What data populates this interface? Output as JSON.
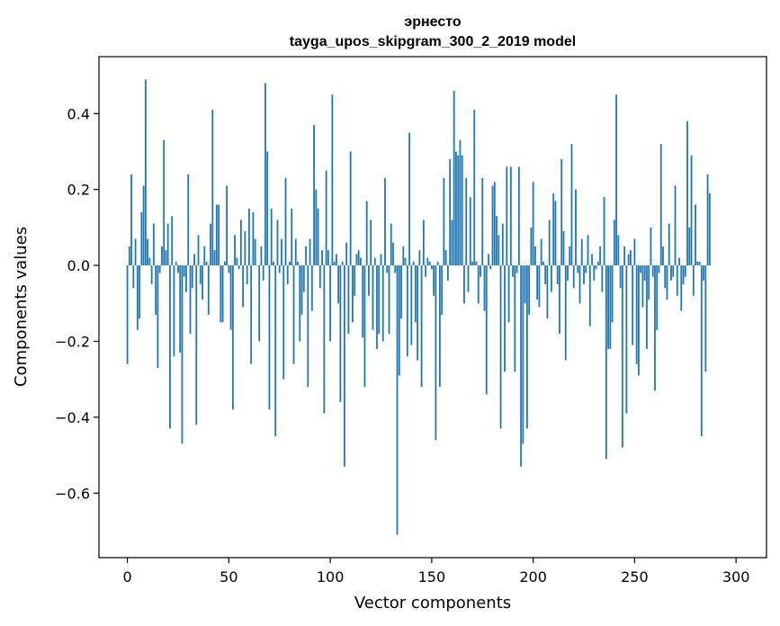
{
  "chart_data": {
    "type": "bar",
    "title_line1": "эрнесто",
    "title_line2": "tayga_upos_skipgram_300_2_2019 model",
    "xlabel": "Vector components",
    "ylabel": "Components values",
    "xlim": [
      -14,
      315
    ],
    "ylim": [
      -0.77,
      0.55
    ],
    "xticks": [
      0,
      50,
      100,
      150,
      200,
      250,
      300
    ],
    "yticks": [
      -0.6,
      -0.4,
      -0.2,
      0.0,
      0.2,
      0.4
    ],
    "ytick_labels": [
      "−0.6",
      "−0.4",
      "−0.2",
      "0.0",
      "0.2",
      "0.4"
    ],
    "grid": false,
    "bar_color": "#1f77b4",
    "values": [
      -0.26,
      0.05,
      0.24,
      -0.06,
      0.07,
      -0.17,
      -0.14,
      0.14,
      0.21,
      0.49,
      0.07,
      0.02,
      -0.05,
      0.11,
      -0.13,
      -0.27,
      -0.02,
      0.05,
      0.33,
      0.04,
      0.11,
      -0.43,
      0.13,
      -0.24,
      0.01,
      -0.02,
      -0.23,
      -0.47,
      -0.03,
      -0.07,
      0.24,
      -0.18,
      -0.06,
      0.03,
      -0.42,
      0.08,
      -0.05,
      -0.09,
      0.05,
      0.01,
      -0.13,
      0.11,
      0.41,
      0.04,
      0.16,
      0.16,
      -0.15,
      -0.15,
      0.01,
      0.21,
      -0.02,
      -0.17,
      -0.38,
      0.08,
      0.02,
      -0.01,
      0.12,
      -0.11,
      0.09,
      -0.05,
      0.15,
      -0.26,
      0.14,
      0.07,
      0.0,
      -0.2,
      0.05,
      -0.04,
      0.48,
      0.3,
      -0.38,
      0.15,
      0.01,
      -0.45,
      0.12,
      -0.02,
      0.07,
      -0.3,
      0.23,
      -0.05,
      0.01,
      0.15,
      -0.26,
      0.07,
      0.01,
      -0.2,
      -0.13,
      -0.07,
      0.05,
      -0.32,
      0.07,
      -0.12,
      0.37,
      0.2,
      0.15,
      -0.06,
      0.04,
      -0.39,
      0.25,
      0.04,
      -0.2,
      0.45,
      0.01,
      0.03,
      -0.1,
      -0.36,
      0.01,
      -0.53,
      0.06,
      -0.18,
      0.3,
      -0.15,
      -0.08,
      0.03,
      0.04,
      0.02,
      -0.19,
      -0.32,
      0.17,
      -0.08,
      0.12,
      -0.17,
      0.02,
      -0.22,
      -0.18,
      0.03,
      -0.2,
      0.23,
      -0.02,
      -0.18,
      0.11,
      0.06,
      -0.02,
      -0.71,
      -0.29,
      -0.14,
      0.05,
      0.02,
      -0.24,
      0.35,
      -0.21,
      0.01,
      -0.15,
      -0.25,
      0.04,
      -0.32,
      0.12,
      -0.03,
      0.02,
      0.01,
      -0.01,
      -0.08,
      -0.46,
      0.01,
      -0.32,
      -0.13,
      0.23,
      0.04,
      -0.04,
      0.28,
      0.12,
      0.46,
      0.3,
      0.29,
      0.33,
      0.29,
      -0.1,
      0.23,
      -0.07,
      0.18,
      0.01,
      0.41,
      0.01,
      -0.1,
      -0.03,
      0.23,
      -0.12,
      -0.34,
      0.03,
      -0.01,
      0.21,
      0.22,
      0.13,
      0.08,
      -0.43,
      0.11,
      -0.28,
      0.26,
      -0.15,
      0.26,
      -0.03,
      -0.28,
      -0.02,
      0.26,
      -0.53,
      -0.47,
      -0.1,
      -0.43,
      -0.13,
      0.1,
      0.22,
      0.05,
      -0.09,
      -0.11,
      0.07,
      0.01,
      -0.05,
      -0.14,
      0.12,
      -0.07,
      0.19,
      0.17,
      -0.05,
      -0.18,
      0.28,
      0.09,
      -0.25,
      -0.04,
      0.05,
      0.32,
      -0.06,
      0.2,
      -0.02,
      -0.1,
      0.07,
      -0.05,
      -0.02,
      0.08,
      -0.16,
      0.03,
      -0.04,
      -0.01,
      0.01,
      0.05,
      -0.07,
      0.18,
      -0.51,
      -0.22,
      -0.22,
      -0.15,
      0.12,
      0.45,
      0.08,
      -0.06,
      -0.48,
      0.05,
      -0.39,
      0.03,
      0.04,
      -0.21,
      0.07,
      -0.26,
      -0.29,
      -0.02,
      -0.11,
      -0.04,
      -0.22,
      -0.09,
      0.1,
      -0.03,
      -0.33,
      -0.17,
      -0.02,
      0.32,
      0.05,
      -0.06,
      -0.09,
      0.11,
      -0.04,
      -0.03,
      0.21,
      -0.08,
      0.02,
      -0.12,
      -0.05,
      -0.03,
      0.38,
      0.1,
      0.29,
      -0.08,
      0.16,
      0.01,
      0.01,
      -0.45,
      -0.04,
      -0.28,
      0.24,
      0.19
    ]
  }
}
